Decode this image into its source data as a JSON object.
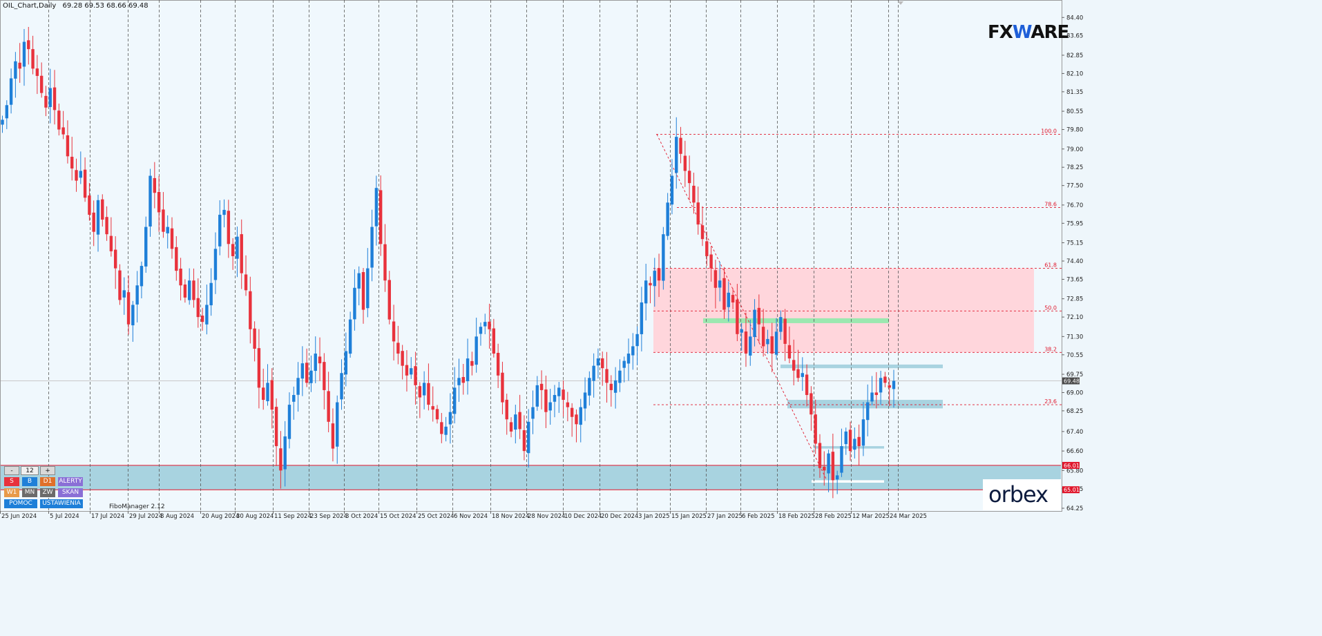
{
  "header": {
    "symbol_label": "OIL_Chart,Daily",
    "ohlc": "69.28 69.53 68.66 69.48"
  },
  "brand": {
    "fxware_prefix": "FX",
    "fxware_suffix": "ARE",
    "orbex": "orbex"
  },
  "indicator_label": "FiboManager 2.12",
  "panel": {
    "minus": "-",
    "value": "12",
    "plus": "+",
    "buttons": [
      {
        "label": "S",
        "color": "#e8323c"
      },
      {
        "label": "B",
        "color": "#1e7fd8"
      },
      {
        "label": "D1",
        "color": "#e0702a"
      },
      {
        "label": "ALERTY",
        "color": "#8a6fd6"
      },
      {
        "label": "W1",
        "color": "#e89a4a"
      },
      {
        "label": "MN",
        "color": "#6b6b6b"
      },
      {
        "label": "ZW",
        "color": "#6b6b6b"
      },
      {
        "label": "SKAN",
        "color": "#8a6fd6"
      },
      {
        "label": "POMOC",
        "color": "#1e7fd8"
      },
      {
        "label": "USTAWIENIA",
        "color": "#1e7fd8"
      }
    ]
  },
  "chart_data": {
    "type": "candlestick",
    "ylim": [
      64.25,
      84.55
    ],
    "y_ticks": [
      "84.40",
      "83.65",
      "82.85",
      "82.10",
      "81.35",
      "80.55",
      "79.80",
      "79.00",
      "78.25",
      "77.50",
      "76.70",
      "75.95",
      "75.15",
      "74.40",
      "73.65",
      "72.85",
      "72.10",
      "71.30",
      "70.55",
      "69.75",
      "69.00",
      "68.25",
      "67.40",
      "66.60",
      "65.80",
      "65.05",
      "64.25"
    ],
    "x_ticks": [
      "25 Jun 2024",
      "5 Jul 2024",
      "17 Jul 2024",
      "29 Jul 2024",
      "8 Aug 2024",
      "20 Aug 2024",
      "30 Aug 2024",
      "11 Sep 2024",
      "23 Sep 2024",
      "3 Oct 2024",
      "15 Oct 2024",
      "25 Oct 2024",
      "6 Nov 2024",
      "18 Nov 2024",
      "28 Nov 2024",
      "10 Dec 2024",
      "20 Dec 2024",
      "3 Jan 2025",
      "15 Jan 2025",
      "27 Jan 2025",
      "6 Feb 2025",
      "18 Feb 2025",
      "28 Feb 2025",
      "12 Mar 2025",
      "24 Mar 2025"
    ],
    "candle_closes": [
      80.2,
      80.8,
      81.9,
      82.6,
      82.3,
      83.4,
      83.1,
      82.3,
      82.0,
      81.3,
      80.7,
      81.5,
      80.6,
      79.8,
      79.6,
      78.7,
      78.2,
      77.7,
      78.1,
      77.0,
      76.3,
      75.6,
      76.9,
      76.1,
      75.5,
      74.8,
      74.1,
      72.8,
      73.2,
      71.8,
      72.6,
      73.4,
      74.2,
      75.8,
      77.9,
      77.2,
      76.4,
      75.6,
      75.8,
      74.9,
      74.0,
      73.4,
      72.9,
      73.6,
      72.8,
      72.1,
      71.9,
      72.6,
      73.5,
      74.9,
      76.3,
      76.5,
      75.1,
      74.6,
      75.4,
      73.9,
      73.2,
      71.6,
      70.8,
      69.2,
      68.7,
      69.4,
      68.3,
      66.8,
      65.8,
      67.2,
      68.5,
      68.9,
      69.6,
      70.2,
      69.4,
      69.9,
      70.6,
      70.2,
      69.1,
      67.8,
      66.7,
      68.6,
      69.8,
      70.7,
      72.0,
      73.3,
      73.9,
      72.4,
      74.1,
      75.8,
      77.4,
      75.1,
      73.6,
      72.0,
      71.1,
      70.6,
      70.1,
      69.7,
      70.0,
      69.3,
      68.8,
      69.4,
      68.5,
      68.3,
      67.9,
      67.3,
      67.6,
      68.2,
      69.2,
      69.6,
      69.4,
      70.4,
      70.1,
      71.3,
      71.7,
      71.9,
      71.6,
      70.6,
      69.7,
      68.6,
      67.9,
      67.4,
      68.1,
      67.5,
      66.6,
      67.8,
      68.4,
      69.3,
      69.1,
      68.2,
      68.6,
      68.9,
      69.2,
      68.7,
      68.4,
      68.0,
      67.7,
      68.4,
      69.0,
      69.6,
      70.1,
      70.4,
      70.0,
      69.4,
      69.1,
      69.5,
      69.9,
      70.3,
      70.6,
      70.9,
      71.4,
      72.7,
      73.6,
      73.4,
      74.0,
      73.6,
      75.5,
      76.8,
      77.9,
      79.5,
      78.8,
      78.1,
      77.6,
      76.8,
      75.9,
      75.3,
      74.6,
      74.1,
      73.3,
      73.6,
      72.4,
      73.1,
      72.7,
      71.4,
      71.6,
      70.6,
      71.3,
      72.4,
      71.8,
      70.9,
      71.2,
      70.6,
      71.5,
      72.1,
      71.0,
      70.4,
      69.9,
      69.6,
      69.8,
      68.9,
      68.1,
      66.9,
      65.9,
      65.8,
      66.5,
      65.4,
      65.6,
      66.8,
      67.4,
      66.6,
      67.1,
      66.8,
      67.9,
      68.6,
      69.0,
      68.9,
      69.6,
      69.4,
      69.2,
      69.48
    ],
    "fibonacci_levels": [
      {
        "label": "100.0",
        "price": 79.6
      },
      {
        "label": "78.6",
        "price": 76.6
      },
      {
        "label": "61.8",
        "price": 74.1
      },
      {
        "label": "50.0",
        "price": 72.35
      },
      {
        "label": "38.2",
        "price": 70.65
      },
      {
        "label": "23.6",
        "price": 68.5
      }
    ],
    "price_markers": [
      {
        "label": "69.48",
        "price": 69.48,
        "color": "#4a4a4a"
      },
      {
        "label": "66.01",
        "price": 66.01,
        "color": "#e0162b"
      },
      {
        "label": "65.01",
        "price": 65.01,
        "color": "#e0162b"
      }
    ],
    "zones": [
      {
        "name": "fibonacci-zone",
        "from": 70.65,
        "to": 74.1,
        "color": "#ffd6dc"
      },
      {
        "name": "support-zone",
        "from": 65.01,
        "to": 66.01,
        "color": "#a8d3e0"
      },
      {
        "name": "resistance-band",
        "from": 70.0,
        "to": 70.15,
        "color": "#a8d3e0"
      },
      {
        "name": "mid-band",
        "from": 68.35,
        "to": 68.7,
        "color": "#a8d3e0"
      },
      {
        "name": "low-band",
        "from": 66.7,
        "to": 66.8,
        "color": "#a8d3e0"
      },
      {
        "name": "green-band",
        "from": 71.85,
        "to": 72.05,
        "color": "#9be8b0"
      },
      {
        "name": "white-band",
        "from": 65.3,
        "to": 65.4,
        "color": "#ffffff"
      }
    ],
    "bull_color": "#1e7fd8",
    "bear_color": "#e8323c",
    "grid": "vertical-dashed"
  }
}
